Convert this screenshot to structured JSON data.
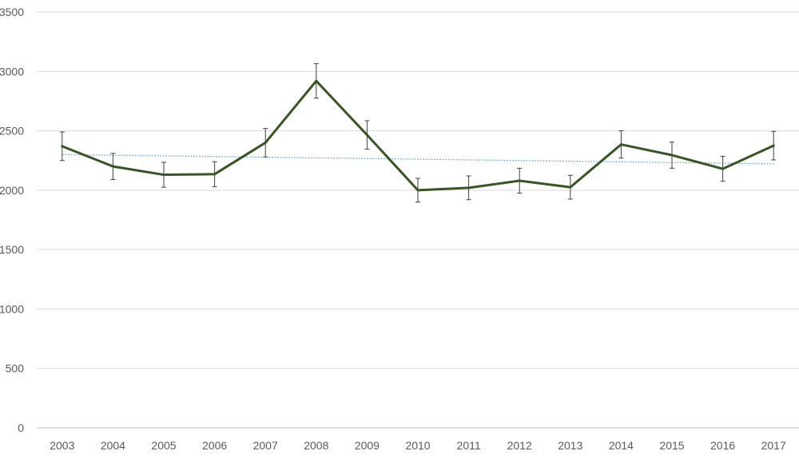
{
  "chart_data": {
    "type": "line",
    "title": "",
    "xlabel": "",
    "ylabel": "",
    "categories": [
      "2003",
      "2004",
      "2005",
      "2006",
      "2007",
      "2008",
      "2009",
      "2010",
      "2011",
      "2012",
      "2013",
      "2014",
      "2015",
      "2016",
      "2017"
    ],
    "series": [
      {
        "values": [
          2370,
          2200,
          2130,
          2135,
          2400,
          2920,
          2465,
          2000,
          2020,
          2080,
          2025,
          2385,
          2295,
          2180,
          2375
        ],
        "error": [
          120,
          110,
          105,
          105,
          120,
          145,
          120,
          100,
          100,
          105,
          100,
          115,
          110,
          105,
          120
        ],
        "color": "#375623"
      }
    ],
    "trendline": {
      "type": "linear",
      "start": 2300,
      "end": 2222,
      "color": "#5b9bd5",
      "style": "dotted"
    },
    "ylim": [
      0,
      3500
    ],
    "yticks": [
      "0",
      "500",
      "1000",
      "1500",
      "2000",
      "2500",
      "3000",
      "3500"
    ],
    "grid": true,
    "legend": "none"
  }
}
